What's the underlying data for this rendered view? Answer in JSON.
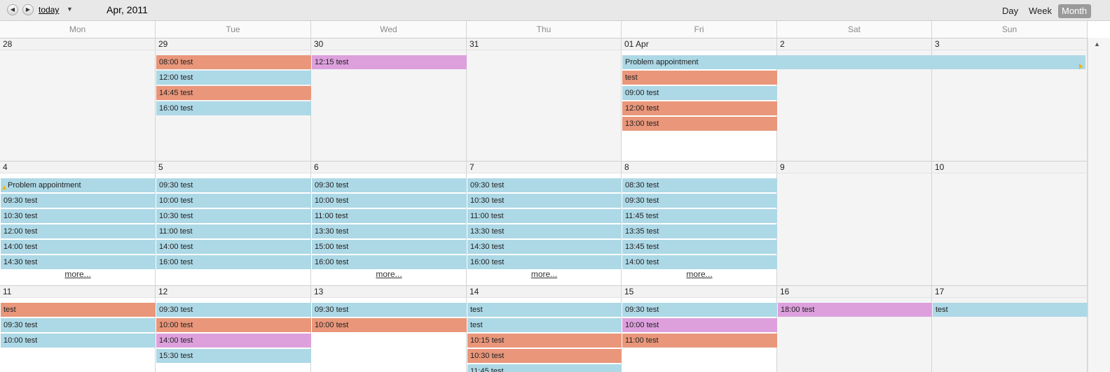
{
  "toolbar": {
    "prev_icon": "chevron-left-icon",
    "next_icon": "chevron-right-icon",
    "today_label": "today",
    "caret_icon": "caret-down-icon",
    "date_title": "Apr, 2011",
    "modes": [
      "Day",
      "Week",
      "Month"
    ],
    "active_mode": "Month"
  },
  "weekdays": [
    "Mon",
    "Tue",
    "Wed",
    "Thu",
    "Fri",
    "Sat",
    "Sun"
  ],
  "colors": {
    "blue": "#add8e6",
    "orange": "#e9967a",
    "pink": "#dda0dd",
    "weekend_marker": "#f2b400"
  },
  "weeks": [
    {
      "days": [
        "28",
        "29",
        "30",
        "31",
        "01 Apr",
        "2",
        "3"
      ],
      "spans": [
        {
          "text": "Problem appointment",
          "start_day": 4,
          "end_day": 6,
          "color": "blue",
          "continues": true
        }
      ],
      "events": [
        [],
        [
          {
            "text": "08:00 test",
            "color": "orange"
          },
          {
            "text": "12:00 test",
            "color": "blue"
          },
          {
            "text": "14:45 test",
            "color": "orange"
          },
          {
            "text": "16:00 test",
            "color": "blue"
          }
        ],
        [
          {
            "text": "12:15 test",
            "color": "pink"
          }
        ],
        [],
        [
          {
            "text": "",
            "color": "none"
          },
          {
            "text": "test",
            "color": "orange"
          },
          {
            "text": "09:00 test",
            "color": "blue"
          },
          {
            "text": "12:00 test",
            "color": "orange"
          },
          {
            "text": "13:00 test",
            "color": "orange"
          }
        ],
        [],
        []
      ],
      "more": []
    },
    {
      "days": [
        "4",
        "5",
        "6",
        "7",
        "8",
        "9",
        "10"
      ],
      "spans": [
        {
          "text": "Problem appointment",
          "start_day": 0,
          "end_day": 0,
          "color": "blue",
          "continued": true
        }
      ],
      "events": [
        [
          {
            "text": "",
            "color": "none"
          },
          {
            "text": "09:30 test",
            "color": "blue"
          },
          {
            "text": "10:30 test",
            "color": "blue"
          },
          {
            "text": "12:00 test",
            "color": "blue"
          },
          {
            "text": "14:00 test",
            "color": "blue"
          },
          {
            "text": "14:30 test",
            "color": "blue"
          }
        ],
        [
          {
            "text": "09:30 test",
            "color": "blue"
          },
          {
            "text": "10:00 test",
            "color": "blue"
          },
          {
            "text": "10:30 test",
            "color": "blue"
          },
          {
            "text": "11:00 test",
            "color": "blue"
          },
          {
            "text": "14:00 test",
            "color": "blue"
          },
          {
            "text": "16:00 test",
            "color": "blue"
          }
        ],
        [
          {
            "text": "09:30 test",
            "color": "blue"
          },
          {
            "text": "10:00 test",
            "color": "blue"
          },
          {
            "text": "11:00 test",
            "color": "blue"
          },
          {
            "text": "13:30 test",
            "color": "blue"
          },
          {
            "text": "15:00 test",
            "color": "blue"
          },
          {
            "text": "16:00 test",
            "color": "blue"
          }
        ],
        [
          {
            "text": "09:30 test",
            "color": "blue"
          },
          {
            "text": "10:30 test",
            "color": "blue"
          },
          {
            "text": "11:00 test",
            "color": "blue"
          },
          {
            "text": "13:30 test",
            "color": "blue"
          },
          {
            "text": "14:30 test",
            "color": "blue"
          },
          {
            "text": "16:00 test",
            "color": "blue"
          }
        ],
        [
          {
            "text": "08:30 test",
            "color": "blue"
          },
          {
            "text": "09:30 test",
            "color": "blue"
          },
          {
            "text": "11:45 test",
            "color": "blue"
          },
          {
            "text": "13:35 test",
            "color": "blue"
          },
          {
            "text": "13:45 test",
            "color": "blue"
          },
          {
            "text": "14:00 test",
            "color": "blue"
          }
        ],
        [],
        []
      ],
      "more": [
        {
          "day": 0,
          "label": "more..."
        },
        {
          "day": 2,
          "label": "more..."
        },
        {
          "day": 3,
          "label": "more..."
        },
        {
          "day": 4,
          "label": "more..."
        }
      ]
    },
    {
      "days": [
        "11",
        "12",
        "13",
        "14",
        "15",
        "16",
        "17"
      ],
      "spans": [],
      "events": [
        [
          {
            "text": "test",
            "color": "orange"
          },
          {
            "text": "09:30 test",
            "color": "blue"
          },
          {
            "text": "10:00 test",
            "color": "blue"
          }
        ],
        [
          {
            "text": "09:30 test",
            "color": "blue"
          },
          {
            "text": "10:00 test",
            "color": "orange"
          },
          {
            "text": "14:00 test",
            "color": "pink"
          },
          {
            "text": "15:30 test",
            "color": "blue"
          }
        ],
        [
          {
            "text": "09:30 test",
            "color": "blue"
          },
          {
            "text": "10:00 test",
            "color": "orange"
          }
        ],
        [
          {
            "text": "test",
            "color": "blue"
          },
          {
            "text": "test",
            "color": "blue"
          },
          {
            "text": "10:15 test",
            "color": "orange"
          },
          {
            "text": "10:30 test",
            "color": "orange"
          },
          {
            "text": "11:45 test",
            "color": "blue"
          }
        ],
        [
          {
            "text": "09:30 test",
            "color": "blue"
          },
          {
            "text": "10:00 test",
            "color": "pink"
          },
          {
            "text": "11:00 test",
            "color": "orange"
          }
        ],
        [
          {
            "text": "18:00 test",
            "color": "pink"
          }
        ],
        [
          {
            "text": "test",
            "color": "blue"
          }
        ]
      ],
      "more": []
    }
  ]
}
